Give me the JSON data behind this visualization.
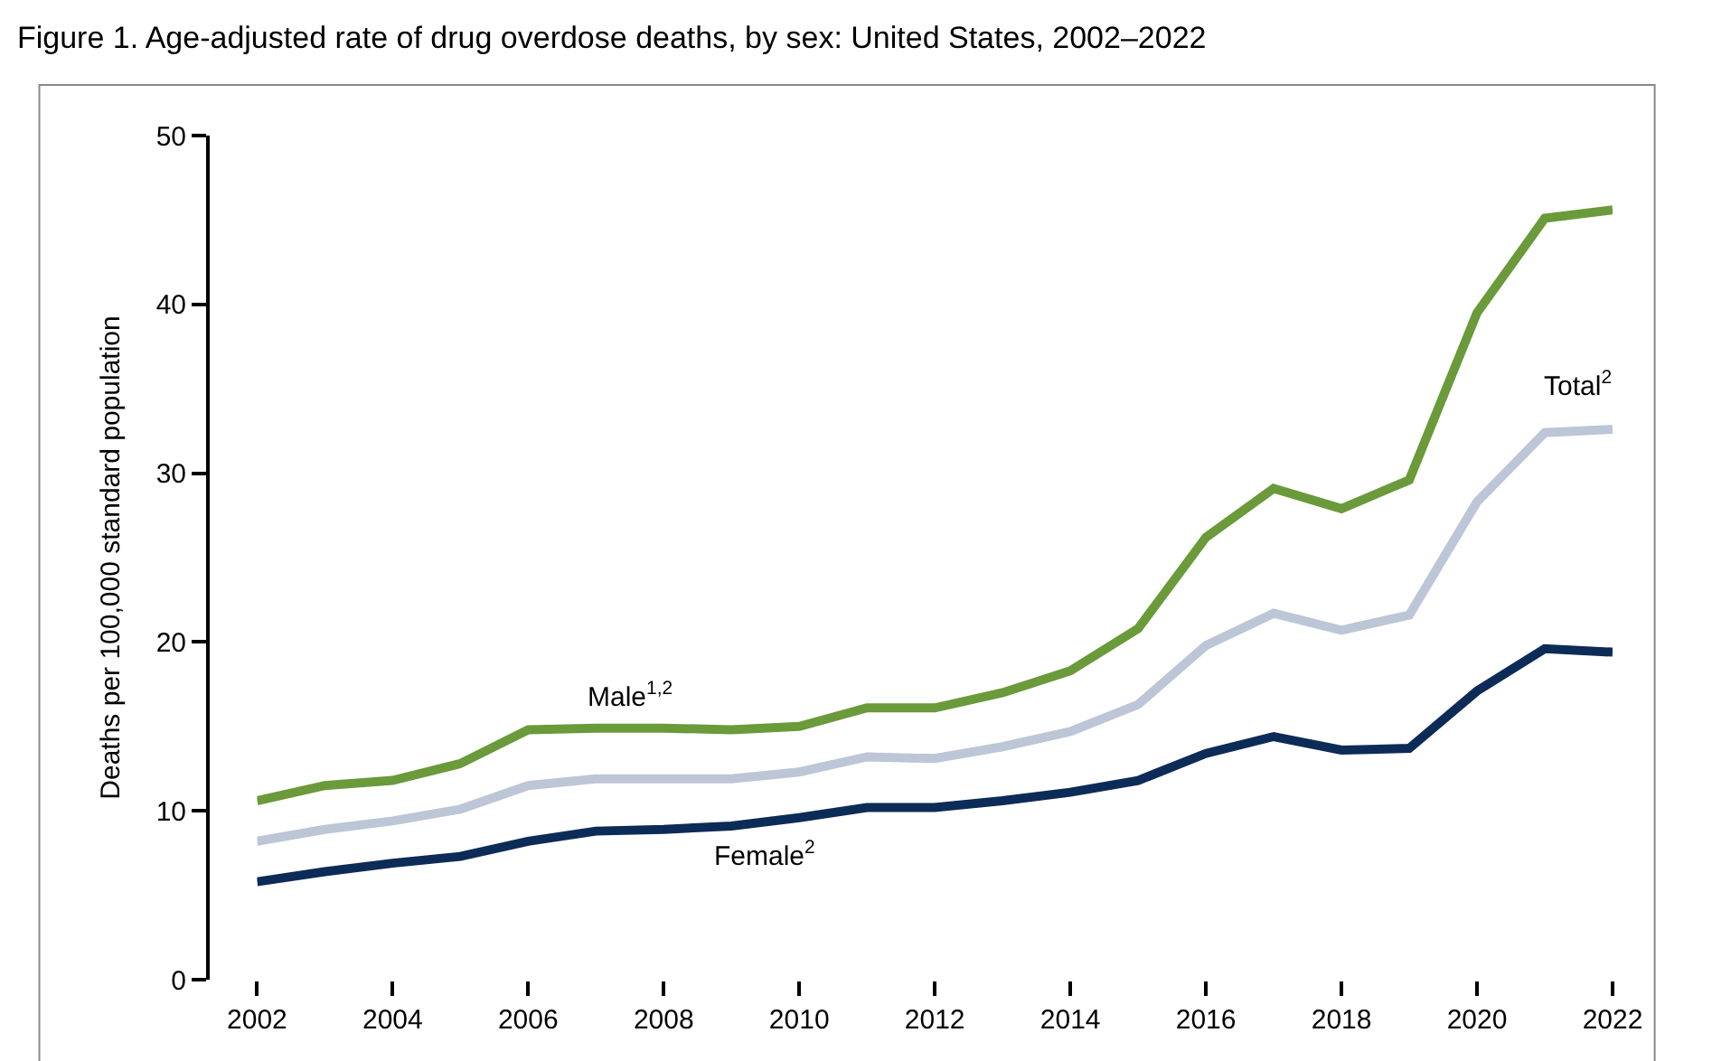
{
  "chart_data": {
    "type": "line",
    "title": "Figure 1. Age-adjusted rate of drug overdose deaths, by sex: United States, 2002–2022",
    "ylabel": "Deaths per 100,000 standard population",
    "x": [
      2002,
      2003,
      2004,
      2005,
      2006,
      2007,
      2008,
      2009,
      2010,
      2011,
      2012,
      2013,
      2014,
      2015,
      2016,
      2017,
      2018,
      2019,
      2020,
      2021,
      2022
    ],
    "series": [
      {
        "name": "Male$^{1,2}$",
        "color": "#6a9a3a",
        "values": [
          10.6,
          11.5,
          11.8,
          12.8,
          14.8,
          14.9,
          14.9,
          14.8,
          15.0,
          16.1,
          16.1,
          17.0,
          18.3,
          20.8,
          26.2,
          29.1,
          27.9,
          29.6,
          39.5,
          45.1,
          45.6
        ]
      },
      {
        "name": "Total$^{2}$",
        "color": "#bcc6d6",
        "values": [
          8.2,
          8.9,
          9.4,
          10.1,
          11.5,
          11.9,
          11.9,
          11.9,
          12.3,
          13.2,
          13.1,
          13.8,
          14.7,
          16.3,
          19.8,
          21.7,
          20.7,
          21.6,
          28.3,
          32.4,
          32.6
        ]
      },
      {
        "name": "Female$^{2}$",
        "color": "#0d2b57",
        "values": [
          5.8,
          6.4,
          6.9,
          7.3,
          8.2,
          8.8,
          8.9,
          9.1,
          9.6,
          10.2,
          10.2,
          10.6,
          11.1,
          11.8,
          13.4,
          14.4,
          13.6,
          13.7,
          17.1,
          19.6,
          19.4
        ]
      }
    ],
    "xlim": [
      2002,
      2022
    ],
    "xticks": [
      2002,
      2004,
      2006,
      2008,
      2010,
      2012,
      2014,
      2016,
      2018,
      2020,
      2022
    ],
    "ylim": [
      0,
      50
    ],
    "yticks": [
      0,
      10,
      20,
      30,
      40,
      50
    ],
    "legend": false,
    "marker": "none",
    "line_style": "solid"
  }
}
